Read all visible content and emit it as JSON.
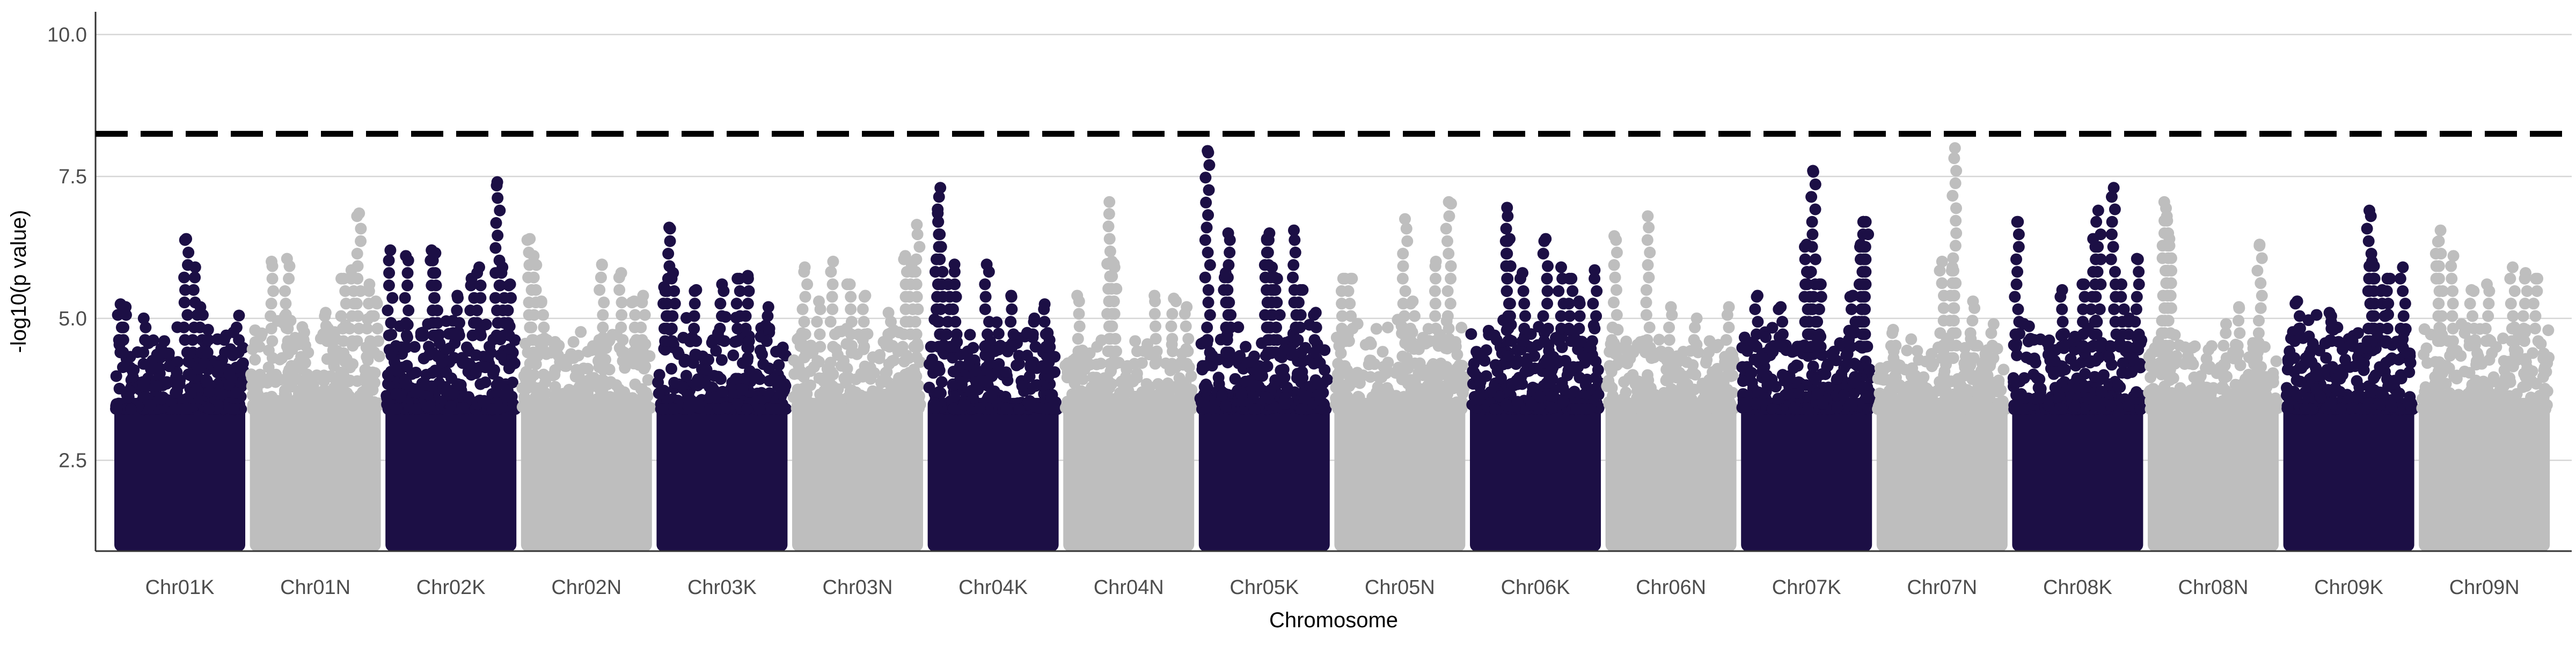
{
  "chart_data": {
    "type": "scatter",
    "title": "",
    "xlabel": "Chromosome",
    "ylabel": "-log10(p value)",
    "ylim": [
      0.9,
      10.4
    ],
    "y_ticks": [
      2.5,
      5.0,
      7.5,
      10.0
    ],
    "y_tick_labels": [
      "2.5",
      "5.0",
      "7.5",
      "10.0"
    ],
    "grid": "horizontal major lines",
    "threshold": {
      "value": 8.25,
      "style": "dashed",
      "color": "#000000"
    },
    "colors": {
      "odd": "#1c0f45",
      "even": "#bebebe"
    },
    "categories": [
      "Chr01K",
      "Chr01N",
      "Chr02K",
      "Chr02N",
      "Chr03K",
      "Chr03N",
      "Chr04K",
      "Chr04N",
      "Chr05K",
      "Chr05N",
      "Chr06K",
      "Chr06N",
      "Chr07K",
      "Chr07N",
      "Chr08K",
      "Chr08N",
      "Chr09K",
      "Chr09N"
    ],
    "series": [
      {
        "chromosome": "Chr01K",
        "color": "#1c0f45",
        "base_max": 4.4,
        "peaks": [
          [
            0.04,
            5.25
          ],
          [
            0.08,
            5.2
          ],
          [
            0.22,
            5.0
          ],
          [
            0.38,
            4.6
          ],
          [
            0.55,
            6.4
          ],
          [
            0.62,
            5.9
          ],
          [
            0.66,
            5.2
          ],
          [
            0.72,
            4.8
          ],
          [
            0.86,
            4.7
          ],
          [
            0.96,
            5.05
          ]
        ]
      },
      {
        "chromosome": "Chr01N",
        "color": "#bebebe",
        "base_max": 4.6,
        "peaks": [
          [
            0.16,
            6.0
          ],
          [
            0.28,
            6.05
          ],
          [
            0.58,
            5.1
          ],
          [
            0.72,
            5.7
          ],
          [
            0.78,
            5.85
          ],
          [
            0.84,
            6.85
          ],
          [
            0.92,
            5.6
          ],
          [
            0.97,
            5.3
          ]
        ]
      },
      {
        "chromosome": "Chr02K",
        "color": "#1c0f45",
        "base_max": 4.7,
        "peaks": [
          [
            0.03,
            6.2
          ],
          [
            0.15,
            6.1
          ],
          [
            0.35,
            6.2
          ],
          [
            0.38,
            6.15
          ],
          [
            0.55,
            5.4
          ],
          [
            0.66,
            5.7
          ],
          [
            0.72,
            5.9
          ],
          [
            0.86,
            7.4
          ],
          [
            0.9,
            5.9
          ],
          [
            0.96,
            5.6
          ]
        ]
      },
      {
        "chromosome": "Chr02N",
        "color": "#bebebe",
        "base_max": 4.4,
        "peaks": [
          [
            0.06,
            6.4
          ],
          [
            0.09,
            6.1
          ],
          [
            0.15,
            5.3
          ],
          [
            0.62,
            5.95
          ],
          [
            0.77,
            5.8
          ],
          [
            0.87,
            5.3
          ],
          [
            0.94,
            5.4
          ]
        ]
      },
      {
        "chromosome": "Chr03K",
        "color": "#1c0f45",
        "base_max": 4.6,
        "peaks": [
          [
            0.05,
            5.55
          ],
          [
            0.09,
            6.6
          ],
          [
            0.12,
            5.8
          ],
          [
            0.3,
            5.5
          ],
          [
            0.5,
            5.6
          ],
          [
            0.62,
            5.7
          ],
          [
            0.7,
            5.75
          ],
          [
            0.86,
            5.2
          ]
        ]
      },
      {
        "chromosome": "Chr03N",
        "color": "#bebebe",
        "base_max": 4.5,
        "peaks": [
          [
            0.09,
            5.9
          ],
          [
            0.2,
            5.3
          ],
          [
            0.31,
            6.0
          ],
          [
            0.44,
            5.6
          ],
          [
            0.56,
            5.4
          ],
          [
            0.74,
            5.1
          ],
          [
            0.87,
            6.1
          ],
          [
            0.92,
            5.95
          ],
          [
            0.96,
            6.65
          ]
        ]
      },
      {
        "chromosome": "Chr04K",
        "color": "#1c0f45",
        "base_max": 4.5,
        "peaks": [
          [
            0.07,
            6.85
          ],
          [
            0.09,
            7.3
          ],
          [
            0.15,
            5.6
          ],
          [
            0.2,
            5.95
          ],
          [
            0.45,
            5.95
          ],
          [
            0.64,
            5.4
          ],
          [
            0.82,
            5.0
          ],
          [
            0.9,
            5.25
          ]
        ]
      },
      {
        "chromosome": "Chr04N",
        "color": "#bebebe",
        "base_max": 4.2,
        "peaks": [
          [
            0.1,
            5.4
          ],
          [
            0.35,
            7.05
          ],
          [
            0.37,
            6.0
          ],
          [
            0.39,
            5.9
          ],
          [
            0.55,
            4.6
          ],
          [
            0.7,
            5.4
          ],
          [
            0.85,
            5.35
          ],
          [
            0.95,
            5.2
          ]
        ]
      },
      {
        "chromosome": "Chr05K",
        "color": "#1c0f45",
        "base_max": 4.4,
        "peaks": [
          [
            0.06,
            7.95
          ],
          [
            0.22,
            6.5
          ],
          [
            0.2,
            5.8
          ],
          [
            0.52,
            6.4
          ],
          [
            0.54,
            6.5
          ],
          [
            0.56,
            5.9
          ],
          [
            0.6,
            5.7
          ],
          [
            0.73,
            6.55
          ],
          [
            0.78,
            5.5
          ],
          [
            0.9,
            5.1
          ]
        ]
      },
      {
        "chromosome": "Chr05N",
        "color": "#bebebe",
        "base_max": 4.6,
        "peaks": [
          [
            0.06,
            5.7
          ],
          [
            0.12,
            5.7
          ],
          [
            0.54,
            6.75
          ],
          [
            0.6,
            5.3
          ],
          [
            0.78,
            6.0
          ],
          [
            0.88,
            7.05
          ]
        ]
      },
      {
        "chromosome": "Chr06K",
        "color": "#1c0f45",
        "base_max": 4.6,
        "peaks": [
          [
            0.28,
            6.95
          ],
          [
            0.3,
            6.4
          ],
          [
            0.4,
            5.8
          ],
          [
            0.58,
            6.4
          ],
          [
            0.7,
            5.9
          ],
          [
            0.78,
            5.7
          ],
          [
            0.84,
            5.3
          ],
          [
            0.96,
            5.85
          ]
        ]
      },
      {
        "chromosome": "Chr06N",
        "color": "#bebebe",
        "base_max": 4.4,
        "peaks": [
          [
            0.06,
            6.45
          ],
          [
            0.32,
            6.8
          ],
          [
            0.5,
            5.2
          ],
          [
            0.7,
            5.0
          ],
          [
            0.8,
            4.6
          ],
          [
            0.95,
            5.2
          ]
        ]
      },
      {
        "chromosome": "Chr07K",
        "color": "#1c0f45",
        "base_max": 4.5,
        "peaks": [
          [
            0.12,
            5.4
          ],
          [
            0.3,
            5.2
          ],
          [
            0.5,
            6.3
          ],
          [
            0.52,
            5.8
          ],
          [
            0.55,
            7.6
          ],
          [
            0.6,
            5.6
          ],
          [
            0.86,
            5.4
          ],
          [
            0.92,
            6.3
          ],
          [
            0.94,
            6.7
          ],
          [
            0.96,
            6.7
          ]
        ]
      },
      {
        "chromosome": "Chr07N",
        "color": "#bebebe",
        "base_max": 4.3,
        "peaks": [
          [
            0.12,
            4.8
          ],
          [
            0.5,
            6.0
          ],
          [
            0.58,
            5.9
          ],
          [
            0.6,
            8.0
          ],
          [
            0.74,
            5.3
          ],
          [
            0.9,
            4.9
          ]
        ]
      },
      {
        "chromosome": "Chr08K",
        "color": "#1c0f45",
        "base_max": 4.5,
        "peaks": [
          [
            0.03,
            6.7
          ],
          [
            0.38,
            5.5
          ],
          [
            0.55,
            5.6
          ],
          [
            0.62,
            6.4
          ],
          [
            0.66,
            6.9
          ],
          [
            0.78,
            7.3
          ],
          [
            0.84,
            5.6
          ],
          [
            0.9,
            5.0
          ],
          [
            0.96,
            6.05
          ]
        ]
      },
      {
        "chromosome": "Chr08N",
        "color": "#bebebe",
        "base_max": 4.3,
        "peaks": [
          [
            0.12,
            7.05
          ],
          [
            0.14,
            6.8
          ],
          [
            0.16,
            6.4
          ],
          [
            0.6,
            4.9
          ],
          [
            0.7,
            5.2
          ],
          [
            0.86,
            6.3
          ]
        ]
      },
      {
        "chromosome": "Chr09K",
        "color": "#1c0f45",
        "base_max": 4.6,
        "peaks": [
          [
            0.1,
            5.3
          ],
          [
            0.35,
            5.1
          ],
          [
            0.66,
            6.9
          ],
          [
            0.68,
            6.0
          ],
          [
            0.7,
            5.7
          ],
          [
            0.76,
            5.5
          ],
          [
            0.8,
            5.7
          ],
          [
            0.92,
            5.9
          ]
        ]
      },
      {
        "chromosome": "Chr09N",
        "color": "#bebebe",
        "base_max": 4.6,
        "peaks": [
          [
            0.14,
            6.35
          ],
          [
            0.16,
            6.55
          ],
          [
            0.26,
            6.1
          ],
          [
            0.4,
            5.5
          ],
          [
            0.52,
            5.6
          ],
          [
            0.72,
            5.9
          ],
          [
            0.82,
            5.8
          ],
          [
            0.9,
            5.7
          ]
        ]
      }
    ]
  }
}
